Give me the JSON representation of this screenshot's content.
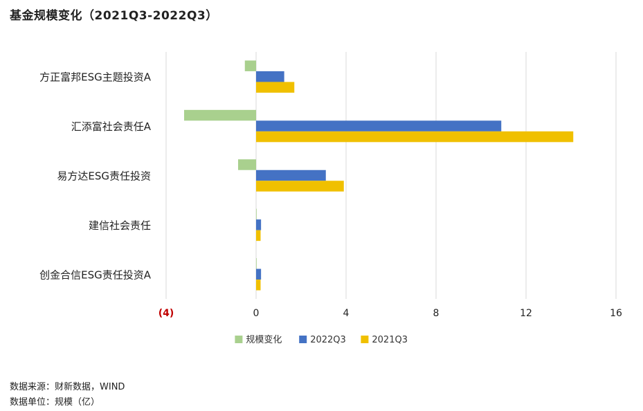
{
  "title": "基金规模变化（2021Q3-2022Q3）",
  "footer": {
    "source": "数据来源：财新数据，WIND",
    "unit": "数据单位：规模（亿）"
  },
  "chart_data": {
    "type": "bar",
    "orientation": "horizontal",
    "categories": [
      "方正富邦ESG主题投资A",
      "汇添富社会责任A",
      "易方达ESG责任投资",
      "建信社会责任",
      "创金合信ESG责任投资A"
    ],
    "series": [
      {
        "name": "规模变化",
        "color": "#a9d08e",
        "values": [
          -0.5,
          -3.2,
          -0.8,
          0.02,
          0.02
        ]
      },
      {
        "name": "2022Q3",
        "color": "#4472c4",
        "values": [
          1.25,
          10.9,
          3.1,
          0.22,
          0.22
        ]
      },
      {
        "name": "2021Q3",
        "color": "#f0c000",
        "values": [
          1.7,
          14.1,
          3.9,
          0.2,
          0.2
        ]
      }
    ],
    "xlim": [
      -4,
      16
    ],
    "xticks": [
      -4,
      0,
      4,
      8,
      12,
      16
    ],
    "xtick_labels": [
      "(4)",
      "0",
      "4",
      "8",
      "12",
      "16"
    ],
    "negative_tick_color": "#c00000",
    "grid": true,
    "legend_position": "bottom"
  }
}
